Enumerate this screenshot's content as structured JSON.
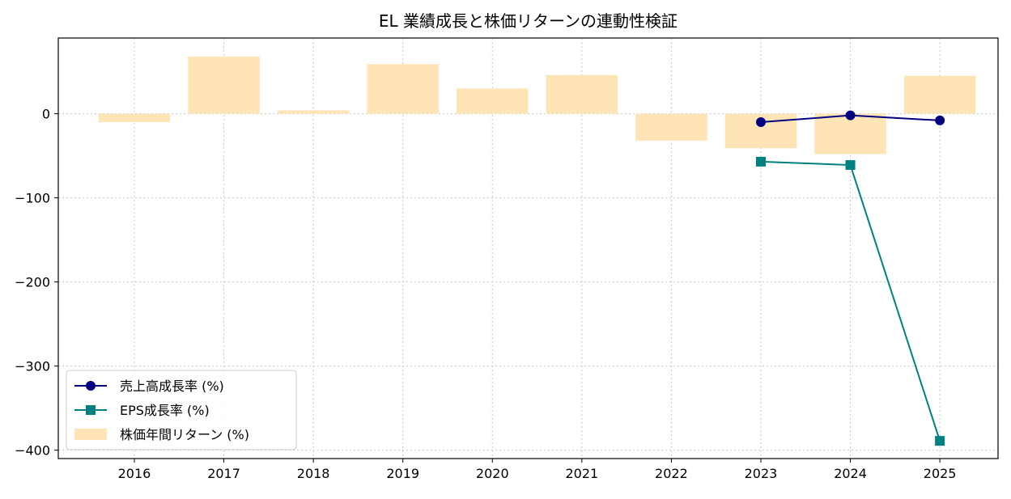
{
  "chart_data": {
    "type": "bar",
    "title": "EL 業績成長と株価リターンの連動性検証",
    "xlabel": "",
    "ylabel": "",
    "categories": [
      "2016",
      "2017",
      "2018",
      "2019",
      "2020",
      "2021",
      "2022",
      "2023",
      "2024",
      "2025"
    ],
    "ylim": [
      -410,
      90
    ],
    "yticks": [
      0,
      -100,
      -200,
      -300,
      -400
    ],
    "ytick_labels": [
      "0",
      "−100",
      "−200",
      "−300",
      "−400"
    ],
    "grid": true,
    "legend_position": "lower-left",
    "series": [
      {
        "name": "株価年間リターン (%)",
        "kind": "bar",
        "color": "#ffe4b5",
        "values": [
          -10,
          68,
          4,
          59,
          30,
          46,
          -32,
          -41,
          -48,
          45
        ]
      },
      {
        "name": "売上高成長率 (%)",
        "kind": "line",
        "marker": "circle",
        "color": "#000080",
        "values": [
          null,
          null,
          null,
          null,
          null,
          null,
          null,
          -10,
          -2,
          -8
        ]
      },
      {
        "name": "EPS成長率 (%)",
        "kind": "line",
        "marker": "square",
        "color": "#008080",
        "values": [
          null,
          null,
          null,
          null,
          null,
          null,
          null,
          -57,
          -61,
          -389
        ]
      }
    ],
    "legend_order": [
      "売上高成長率 (%)",
      "EPS成長率 (%)",
      "株価年間リターン (%)"
    ]
  }
}
